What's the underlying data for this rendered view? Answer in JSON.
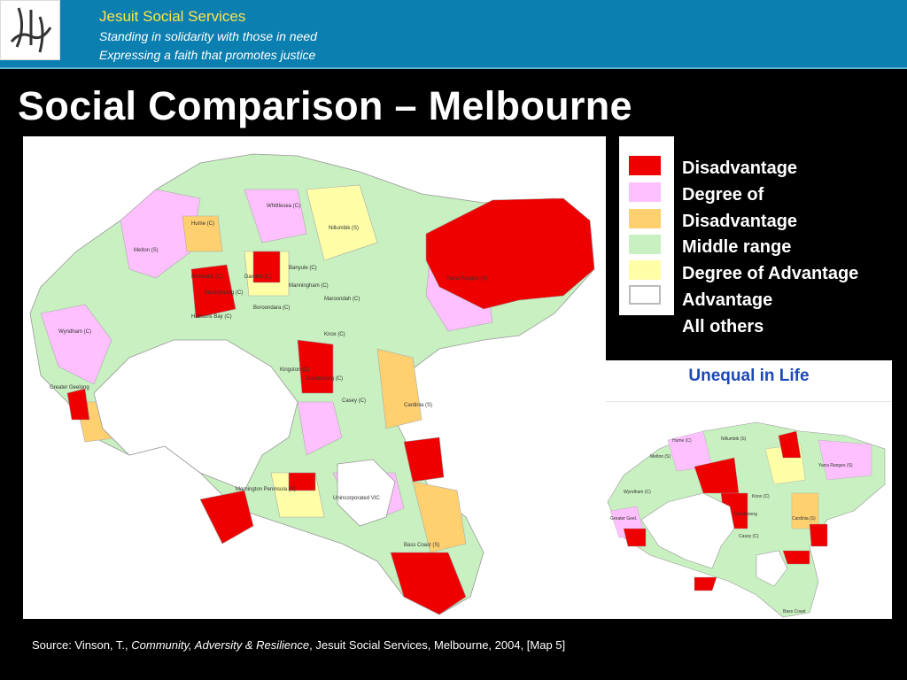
{
  "header": {
    "org": "Jesuit Social Services",
    "tagline1": "Standing in solidarity with those in need",
    "tagline2": "Expressing a faith that promotes justice"
  },
  "title": "Social Comparison – Melbourne",
  "legend": {
    "items": [
      {
        "label": "Disadvantage",
        "color": "#ee0000"
      },
      {
        "label": "Degree of",
        "color": "#ffc0ff"
      },
      {
        "label": "Disadvantage",
        "color": "#ffd070"
      },
      {
        "label": "Middle range",
        "color": "#c8f0c0"
      },
      {
        "label": "Degree of Advantage",
        "color": "#ffffa8"
      },
      {
        "label": "Advantage",
        "color": "#ffffff"
      },
      {
        "label": "All others"
      }
    ]
  },
  "main_map": {
    "places": [
      "Whittlesea (C)",
      "Hume (C)",
      "Nillumbik (S)",
      "Melton (S)",
      "Yarra Ranges (S)",
      "Brimbank (C)",
      "Darebin (C)",
      "Maribyrnong (C)",
      "Banyule (C)",
      "Manningham (C)",
      "Maroondah (C)",
      "Hobsons Bay (C)",
      "Boroondara (C)",
      "Wyndham (C)",
      "Knox (C)",
      "Kingston (C)",
      "Casey (C)",
      "Greater Geelong",
      "Dandenong (C)",
      "Cardinia (S)",
      "Mornington Peninsula (S)",
      "Unincorporated VIC",
      "Bass Coast (S)"
    ]
  },
  "inset": {
    "title": "Unequal in Life",
    "places": [
      "Hume (C)",
      "Nillumbik (S)",
      "Melton (S)",
      "Yarra Ranges (S)",
      "Wyndham (C)",
      "Greater Geel.",
      "Knox (C)",
      "Dandenong",
      "Cardinia (S)",
      "Casey (C)",
      "Bass Coast"
    ]
  },
  "source": {
    "prefix": "Source:  Vinson, T., ",
    "book": "Community, Adversity & Resilience",
    "suffix": ", Jesuit Social Services, Melbourne, 2004, [Map 5]"
  },
  "colors": {
    "header_bg": "#0b7fb0",
    "org_text": "#ffe34a",
    "inset_title": "#1d49b8",
    "bay_water": "#ffffff"
  }
}
